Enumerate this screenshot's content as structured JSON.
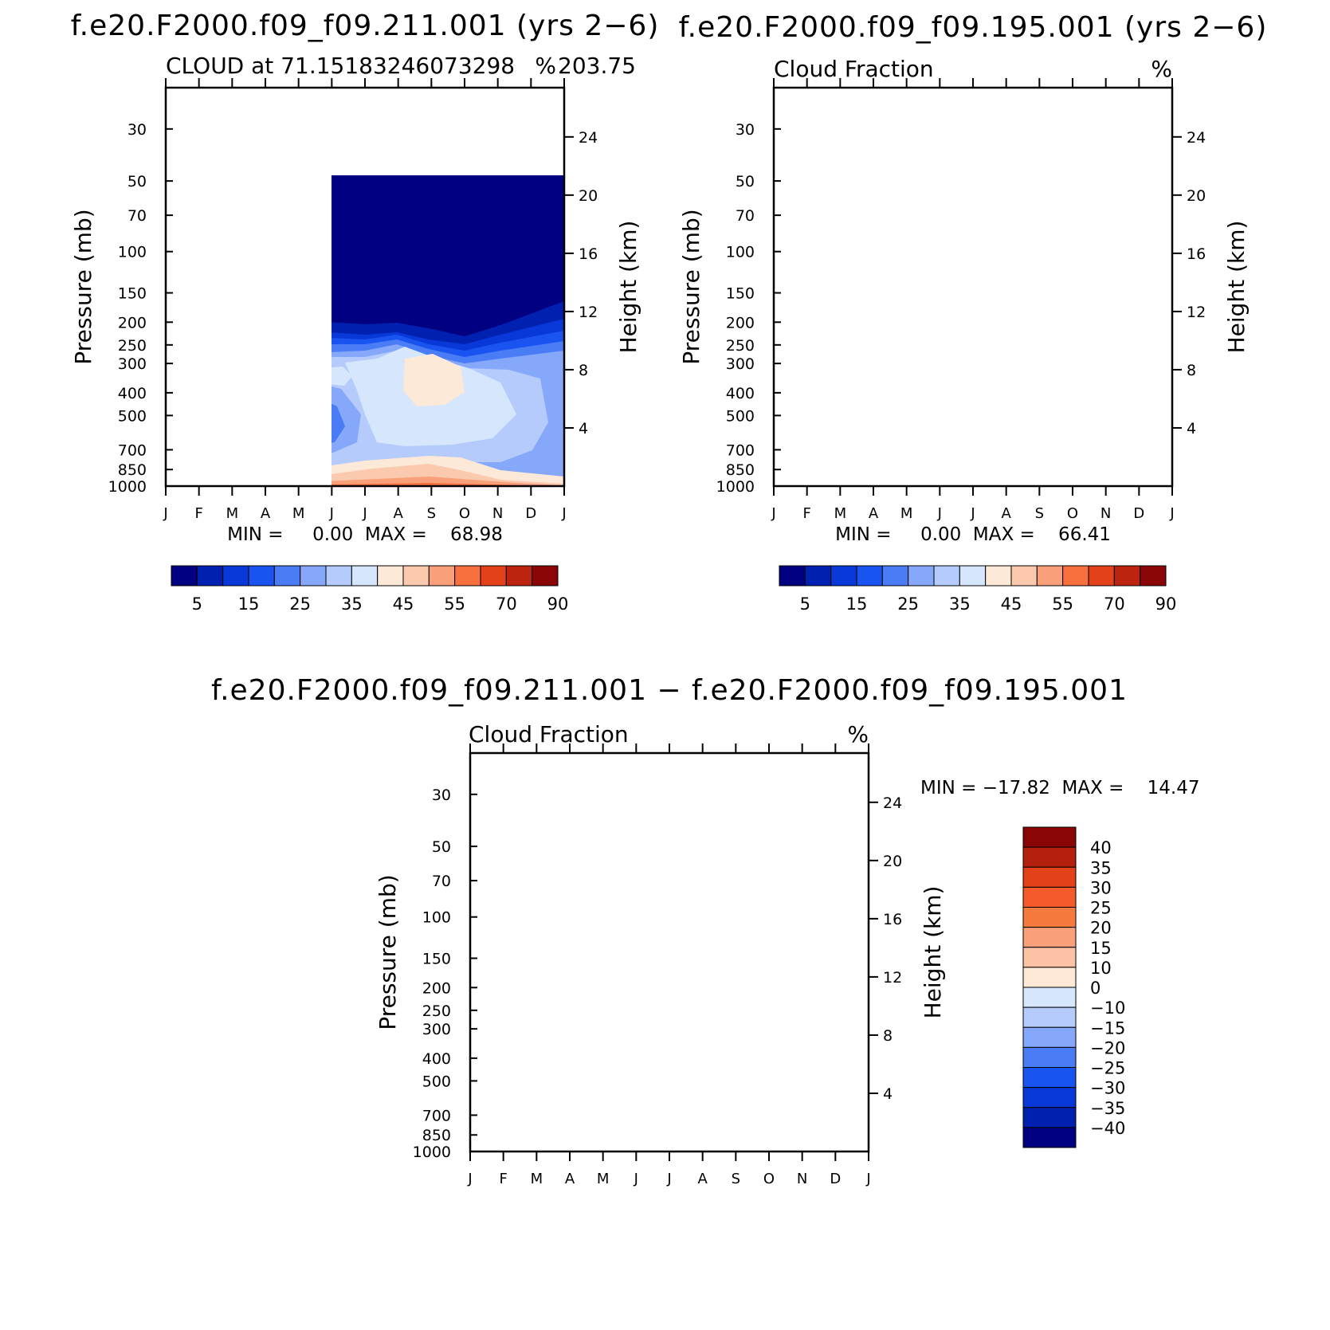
{
  "chart_data": [
    {
      "type": "contour",
      "title": "f.e20.F2000.f09_f09.211.001 (yrs 2−6)",
      "subtitle_left": "CLOUD at 71.15183246073298",
      "subtitle_right": "%",
      "subtitle_coord": "203.75",
      "ylabel_left": "Pressure (mb)",
      "ylabel_right": "Height (km)",
      "x_ticks": [
        "J",
        "F",
        "M",
        "A",
        "M",
        "J",
        "J",
        "A",
        "S",
        "O",
        "N",
        "D",
        "J"
      ],
      "pressure_ticks": [
        "30",
        "50",
        "70",
        "100",
        "150",
        "200",
        "250",
        "300",
        "400",
        "500",
        "700",
        "850",
        "1000"
      ],
      "height_ticks": [
        "24",
        "20",
        "16",
        "12",
        "8",
        "4"
      ],
      "stats": "MIN =     0.00  MAX =    68.98",
      "min": 0.0,
      "max": 68.98,
      "colorbar_labels": [
        "5",
        "15",
        "25",
        "35",
        "45",
        "55",
        "70",
        "90"
      ]
    },
    {
      "type": "contour",
      "title": "f.e20.F2000.f09_f09.195.001 (yrs 2−6)",
      "subtitle_left": "Cloud Fraction",
      "subtitle_right": "%",
      "ylabel_left": "Pressure (mb)",
      "ylabel_right": "Height (km)",
      "x_ticks": [
        "J",
        "F",
        "M",
        "A",
        "M",
        "J",
        "J",
        "A",
        "S",
        "O",
        "N",
        "D",
        "J"
      ],
      "pressure_ticks": [
        "30",
        "50",
        "70",
        "100",
        "150",
        "200",
        "250",
        "300",
        "400",
        "500",
        "700",
        "850",
        "1000"
      ],
      "height_ticks": [
        "24",
        "20",
        "16",
        "12",
        "8",
        "4"
      ],
      "stats": "MIN =     0.00  MAX =    66.41",
      "min": 0.0,
      "max": 66.41,
      "colorbar_labels": [
        "5",
        "15",
        "25",
        "35",
        "45",
        "55",
        "70",
        "90"
      ]
    },
    {
      "type": "contour",
      "title": "f.e20.F2000.f09_f09.211.001 − f.e20.F2000.f09_f09.195.001",
      "subtitle_left": "Cloud Fraction",
      "subtitle_right": "%",
      "ylabel_left": "Pressure (mb)",
      "ylabel_right": "Height (km)",
      "x_ticks": [
        "J",
        "F",
        "M",
        "A",
        "M",
        "J",
        "J",
        "A",
        "S",
        "O",
        "N",
        "D",
        "J"
      ],
      "pressure_ticks": [
        "30",
        "50",
        "70",
        "100",
        "150",
        "200",
        "250",
        "300",
        "400",
        "500",
        "700",
        "850",
        "1000"
      ],
      "height_ticks": [
        "24",
        "20",
        "16",
        "12",
        "8",
        "4"
      ],
      "stats": "MIN = −17.82  MAX =    14.47",
      "min": -17.82,
      "max": 14.47,
      "colorbar_labels": [
        "40",
        "35",
        "30",
        "25",
        "20",
        "15",
        "10",
        "0",
        "−10",
        "−15",
        "−20",
        "−25",
        "−30",
        "−35",
        "−40"
      ]
    }
  ],
  "colors": {
    "seq_scale": [
      "#000080",
      "#0020b0",
      "#0838d8",
      "#1a54f0",
      "#4a7cf5",
      "#86a8fa",
      "#b4cbfc",
      "#d6e7fd",
      "#fde9d7",
      "#fbc9ae",
      "#f9a07a",
      "#f6713e",
      "#e3411a",
      "#bd2410",
      "#8a0606"
    ],
    "diff_scale": [
      "#8a0606",
      "#b3200e",
      "#e3411a",
      "#f55a2a",
      "#f6793e",
      "#f9a07a",
      "#fbc2a6",
      "#fee9d7",
      "#d6e7fd",
      "#b4cbfc",
      "#86a8fa",
      "#4a7cf5",
      "#1a54f0",
      "#0838d8",
      "#0020b0",
      "#000080"
    ]
  }
}
